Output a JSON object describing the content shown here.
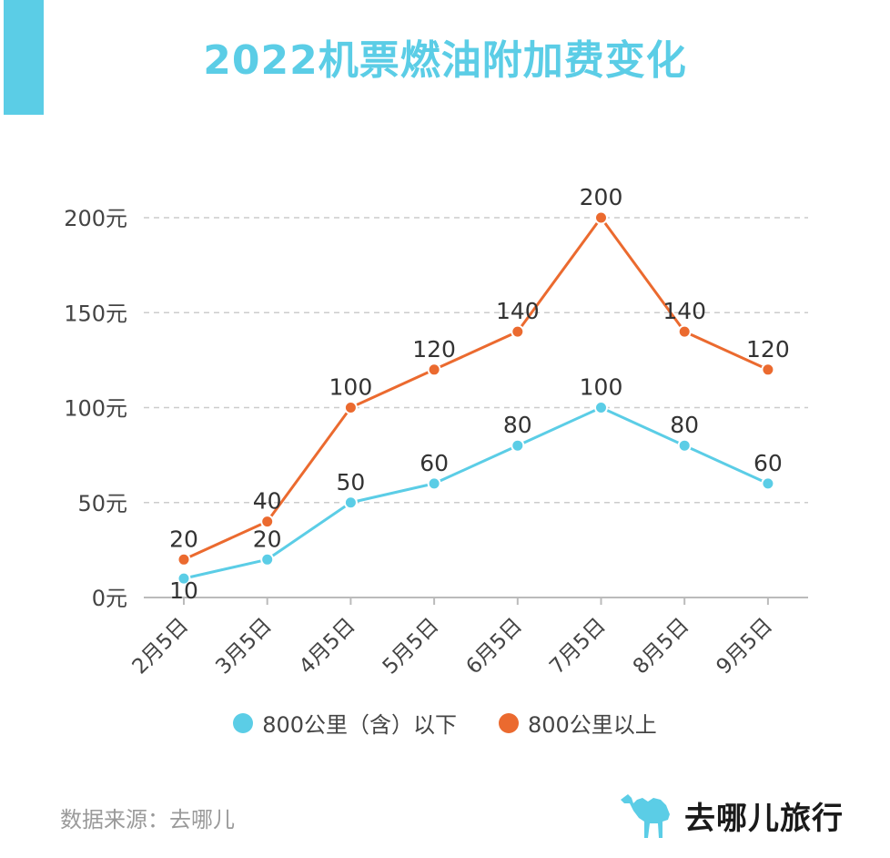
{
  "title": "2022机票燃油附加费变化",
  "source": "数据来源：去哪儿",
  "brand": {
    "name": "去哪儿旅行",
    "logo_icon": "camel-icon"
  },
  "colors": {
    "accent": "#5bcde6",
    "orange": "#eb6a2f",
    "grid": "#cccccc",
    "axis": "#bbbbbb",
    "text": "#444444"
  },
  "chart_data": {
    "type": "line",
    "categories": [
      "2月5日",
      "3月5日",
      "4月5日",
      "5月5日",
      "6月5日",
      "7月5日",
      "8月5日",
      "9月5日"
    ],
    "series": [
      {
        "name": "800公里（含）以下",
        "color": "#5bcde6",
        "values": [
          10,
          20,
          50,
          60,
          80,
          100,
          80,
          60
        ]
      },
      {
        "name": "800公里以上",
        "color": "#eb6a2f",
        "values": [
          20,
          40,
          100,
          120,
          140,
          200,
          140,
          120
        ]
      }
    ],
    "yticks": [
      "0元",
      "50元",
      "100元",
      "150元",
      "200元"
    ],
    "ytick_values": [
      0,
      50,
      100,
      150,
      200
    ],
    "ylim": [
      0,
      200
    ],
    "grid": true,
    "legend": "bottom"
  }
}
